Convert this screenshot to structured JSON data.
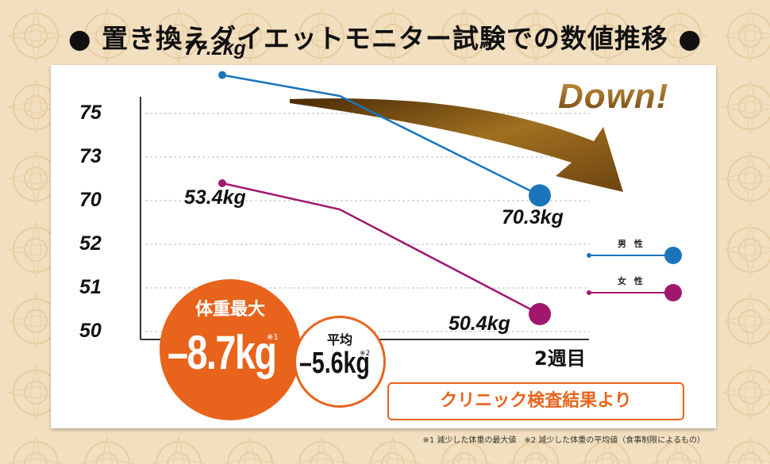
{
  "title": "● 置き換えダイエットモニター試験での数値推移 ●",
  "colors": {
    "male": "#1b75bb",
    "female": "#a0186e",
    "accent": "#e8641c",
    "grid": "#bbbbbb"
  },
  "chart_data": {
    "type": "line",
    "xlabel": "2週目",
    "ytick_labels": [
      "75",
      "73",
      "70",
      "52",
      "51",
      "50"
    ],
    "axis_note": "broken y-axis",
    "series": [
      {
        "name": "男 性",
        "values": [
          77.2,
          76.0,
          70.3
        ],
        "start_label": "77.2kg",
        "end_label": "70.3kg"
      },
      {
        "name": "女 性",
        "values": [
          53.4,
          52.8,
          50.4
        ],
        "start_label": "53.4kg",
        "end_label": "50.4kg"
      }
    ]
  },
  "annotation": {
    "down": "Down!"
  },
  "badges": {
    "max_title": "体重最大",
    "max_value": "–8.7kg",
    "max_note": "※1",
    "avg_title": "平均",
    "avg_value": "–5.6kg",
    "avg_note": "※2"
  },
  "clinic_label": "クリニック検査結果より",
  "footnote": "※1 減少した体重の最大値　※2 減少した体重の平均値（食事制限によるもの）"
}
